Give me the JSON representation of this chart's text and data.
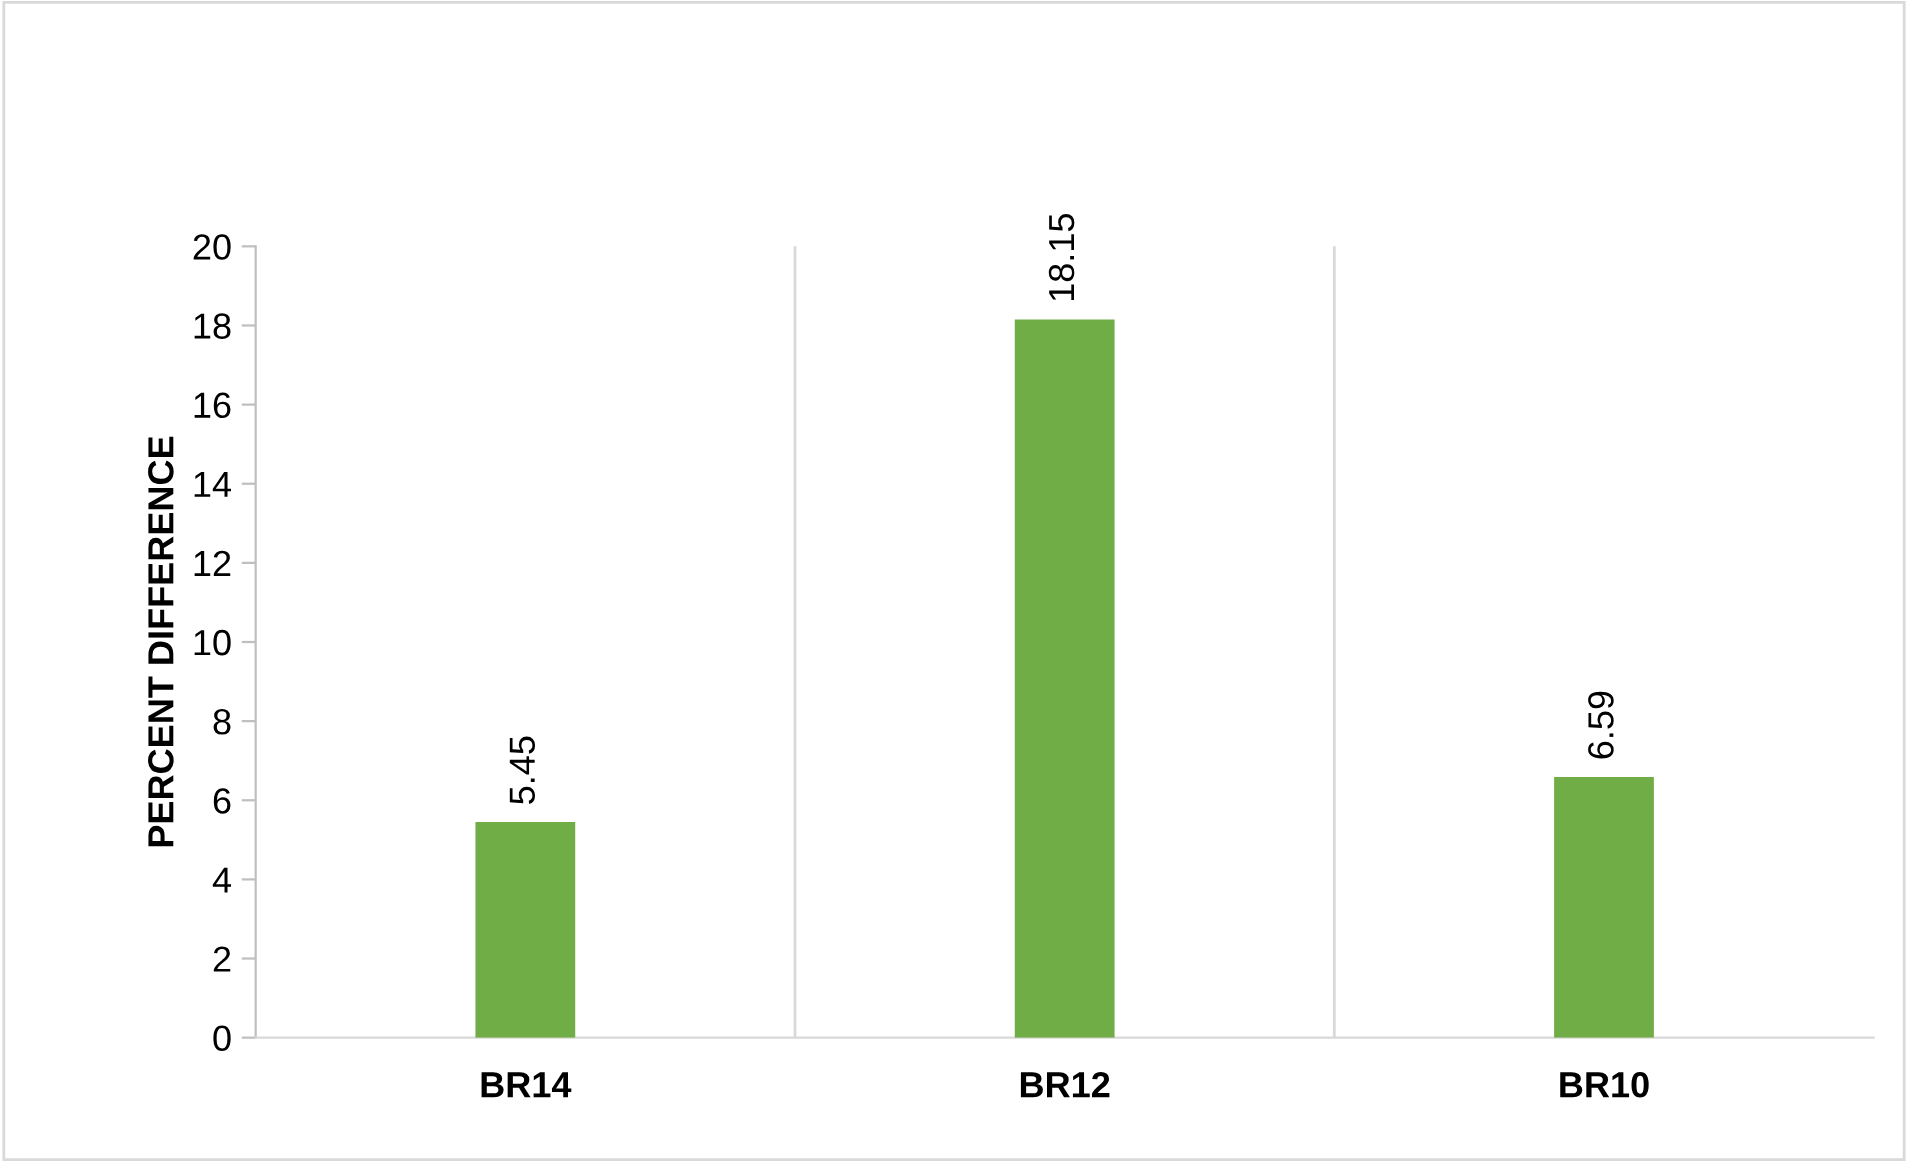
{
  "chart_data": {
    "type": "bar",
    "ylabel": "PERCENT DIFFERENCE",
    "categories": [
      "BR14",
      "BR12",
      "BR10"
    ],
    "values": [
      5.45,
      18.15,
      6.59
    ],
    "color": "#70ad47",
    "ylim": [
      0,
      20
    ],
    "yticks": [
      0,
      2,
      4,
      6,
      8,
      10,
      12,
      14,
      16,
      18,
      20
    ],
    "grid": "x",
    "data_labels": true
  }
}
